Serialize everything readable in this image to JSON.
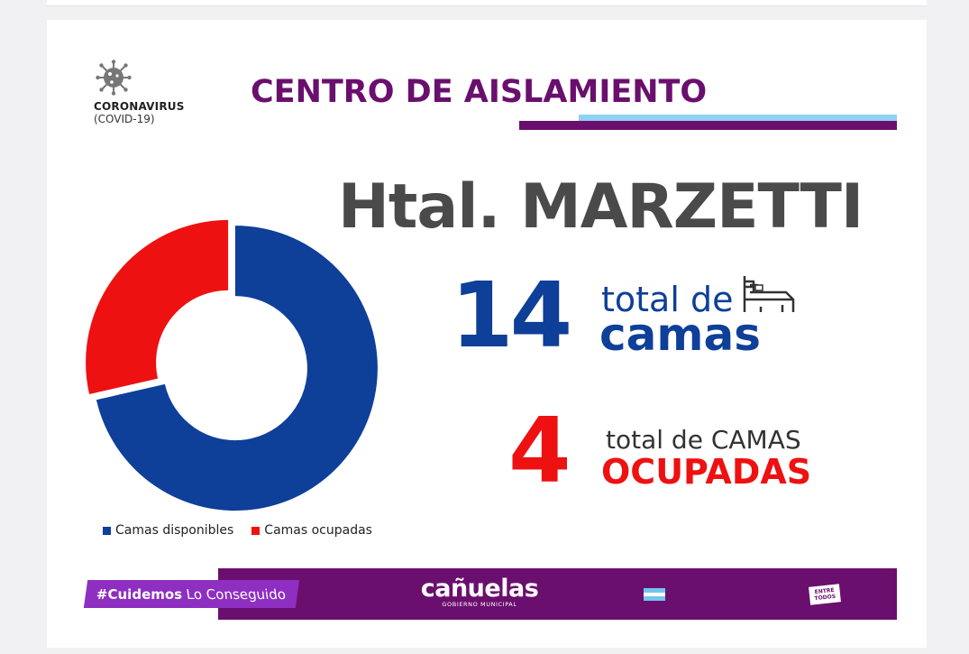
{
  "header": {
    "corona_label": "CORONAVIRUS",
    "corona_sub": "(COVID-19)",
    "title": "CENTRO DE AISLAMIENTO",
    "hospital": "Htal. MARZETTI"
  },
  "stats": {
    "total_number": "14",
    "total_line1": "total de",
    "total_line2": "camas",
    "occupied_number": "4",
    "occupied_line1": "total de CAMAS",
    "occupied_line2": "OCUPADAS"
  },
  "footer": {
    "hashtag_bold": "#Cuidemos",
    "hashtag_rest": " Lo Conseguido",
    "brand_name": "cañuelas",
    "brand_sub": "GOBIERNO MUNICIPAL",
    "badge_line1": "ENTRE",
    "badge_line2": "TODOS"
  },
  "colors": {
    "purple": "#6a0f6e",
    "blue": "#0e3f99",
    "red": "#ee1111",
    "light_blue": "#8fd3f2",
    "gray_text": "#4a4a4a"
  },
  "icons": {
    "virus": "coronavirus-icon",
    "bed": "bed-icon",
    "flag": "flag-icon"
  },
  "chart_data": {
    "type": "pie",
    "donut": true,
    "categories": [
      "Camas disponibles",
      "Camas ocupadas"
    ],
    "values": [
      10,
      4
    ],
    "colors": [
      "#0e3f99",
      "#ee1111"
    ],
    "legend_position": "bottom-left"
  }
}
